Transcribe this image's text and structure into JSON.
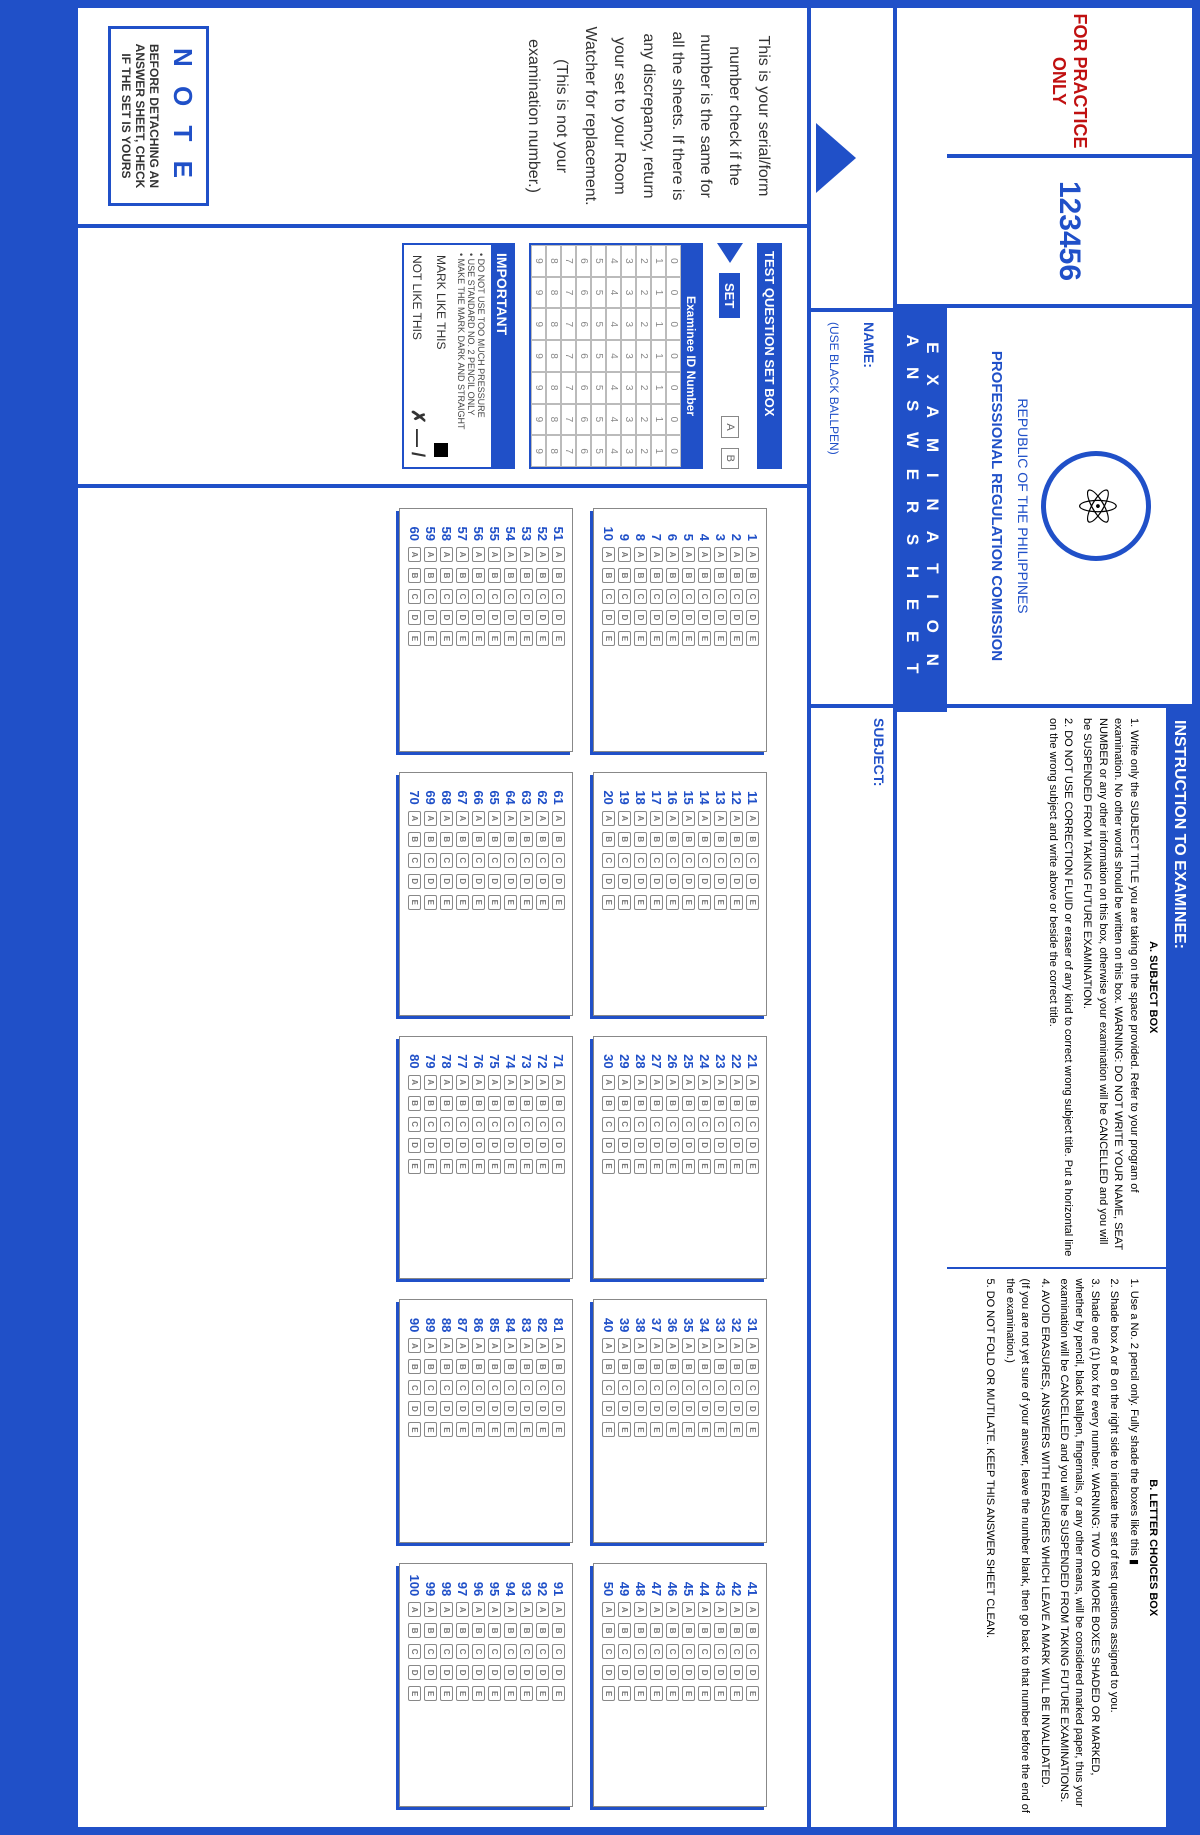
{
  "practice_text": "FOR PRACTICE ONLY",
  "serial_number": "123456",
  "republic": "REPUBLIC OF THE PHILIPPINES",
  "commission": "PROFESSIONAL REGULATION COMISSION",
  "instruction_title": "INSTRUCTION TO EXAMINEE:",
  "subject_box_title": "A. SUBJECT BOX",
  "letter_box_title": "B. LETTER CHOICES BOX",
  "subject_instr_1": "1. Write only the SUBJECT TITLE you are taking on the space provided. Refer to your program of examination. No other words should be written on this box. WARNING: DO NOT WRITE YOUR NAME, SEAT NUMBER or any other information on this box, otherwise your examination will be CANCELLED and you will be SUSPENDED FROM TAKING FUTURE EXAMINATION.",
  "subject_instr_2": "2. DO NOT USE CORRECTION FLUID or eraser of any kind to correct wrong subject title. Put a horizontal line on the wrong subject and write above or beside the correct title.",
  "letter_instr_1": "1. Use a No. 2 pencil only. Fully shade the boxes like this ▮",
  "letter_instr_2": "2. Shade box A or B on the right side to indicate the set of test questions assigned to you.",
  "letter_instr_3": "3. Shade one (1) box for every number. WARNING: TWO OR MORE BOXES SHADED OR MARKED, whether by pencil, black ballpen, fingernails, or any other means, will be considered marked paper, thus your examination will be CANCELLED and you will be SUSPENDED FROM TAKING FUTURE EXAMINATIONS.",
  "letter_instr_4": "4. AVOID ERASURES, ANSWERS WITH ERASURES WHICH LEAVE A MARK WILL BE INVALIDATED.",
  "letter_instr_5": "(If you are not yet sure of your answer, leave the number blank, then go back to that number before the end of the examination.)",
  "letter_instr_6": "5. DO NOT FOLD OR MUTILATE. KEEP THIS ANSWER SHEET CLEAN.",
  "exam_title_1": "E X A M I N A T I O N",
  "exam_title_2": "A N S W E R   S H E E T",
  "name_label": "NAME:",
  "name_hint": "(USE BLACK BALLPEN)",
  "subject_label": "SUBJECT:",
  "arrow_text": "This is your serial/form number check if the number is the same for all the sheets. If there is any discrepancy, return your set to your Room Watcher for replacement. (This is not your examination number.)",
  "note_title": "N O T E",
  "note_body": "BEFORE DETACHING AN ANSWER SHEET, CHECK IF THE SET IS YOURS",
  "tsb_label": "TEST QUESTION SET BOX",
  "set_label": "SET",
  "id_label": "Examinee ID Number",
  "important_title": "IMPORTANT",
  "imp_lines": [
    "• DO NOT USE TOO MUCH PRESSURE",
    "• USE STANDARD NO. 2 PENCIL ONLY",
    "• MAKE THE MARK DARK AND STRAIGHT"
  ],
  "mark_like": "MARK LIKE THIS",
  "not_like": "NOT LIKE THIS",
  "not_like_symbols": "✗ — /",
  "choices": [
    "A",
    "B",
    "C",
    "D",
    "E"
  ],
  "answer_blocks": [
    [
      1,
      10
    ],
    [
      11,
      20
    ],
    [
      21,
      30
    ],
    [
      31,
      40
    ],
    [
      41,
      50
    ],
    [
      51,
      60
    ],
    [
      61,
      70
    ],
    [
      71,
      80
    ],
    [
      81,
      90
    ],
    [
      91,
      100
    ]
  ],
  "id_digits": [
    0,
    1,
    2,
    3,
    4,
    5,
    6,
    7,
    8,
    9
  ]
}
